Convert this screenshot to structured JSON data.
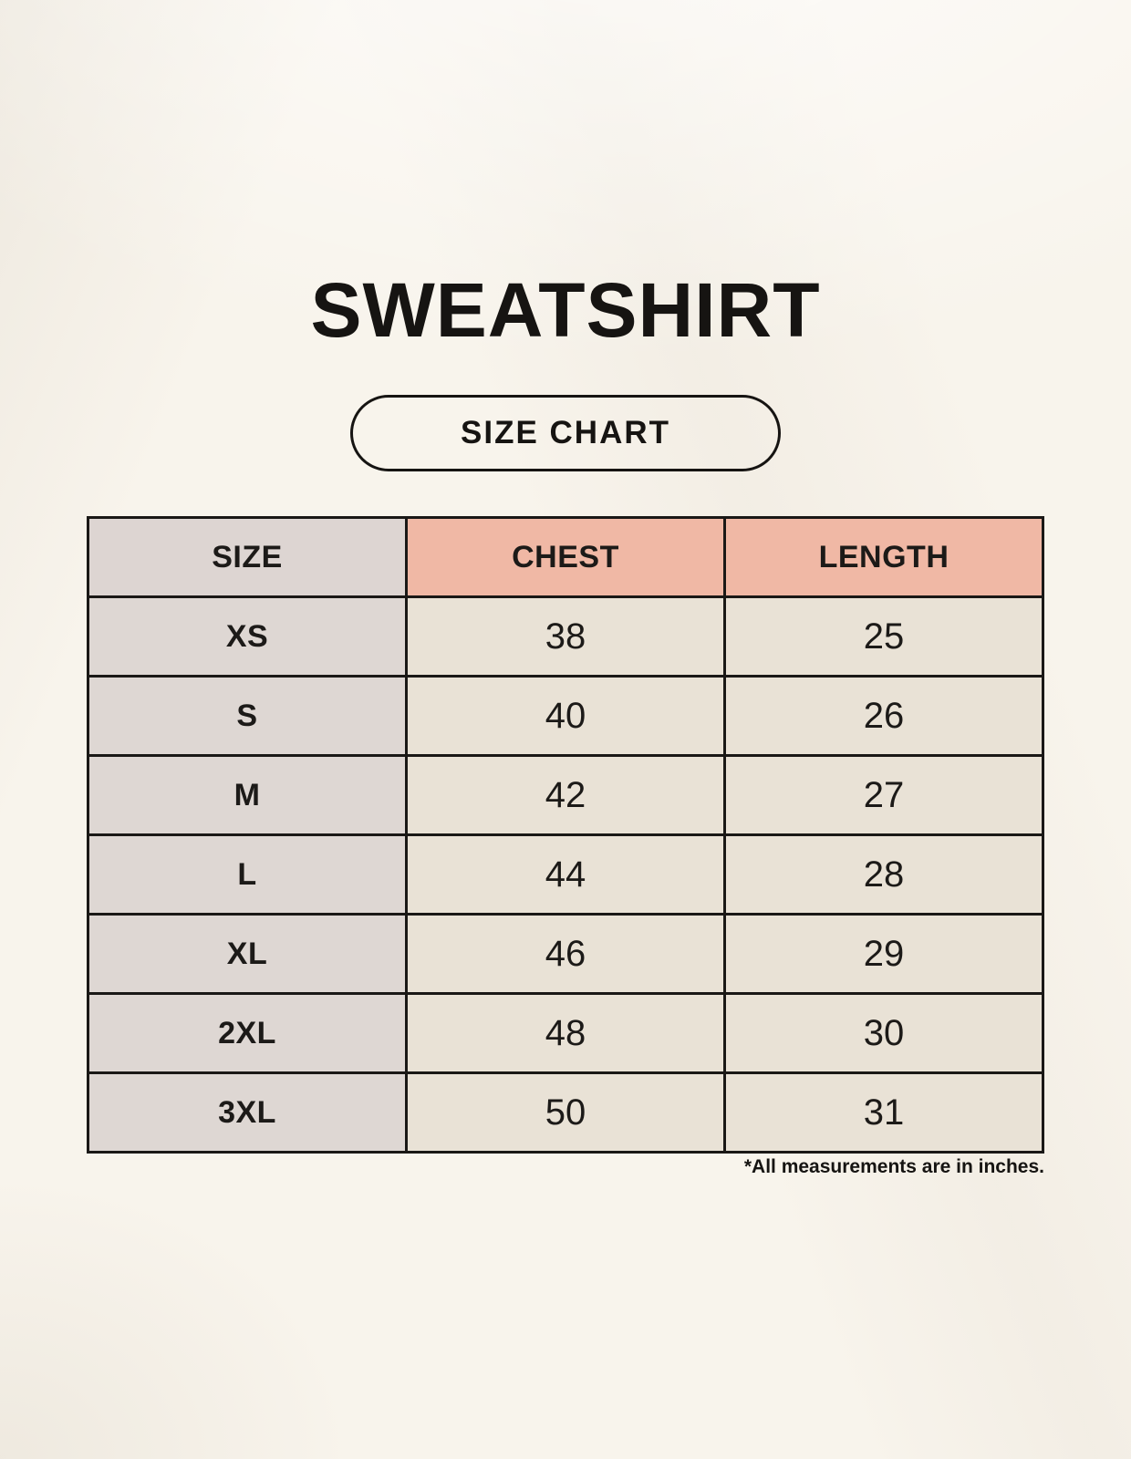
{
  "title": "SWEATSHIRT",
  "badge_label": "SIZE CHART",
  "footnote": "*All measurements are in inches.",
  "table": {
    "headers": [
      "SIZE",
      "CHEST",
      "LENGTH"
    ],
    "rows": [
      [
        "XS",
        "38",
        "25"
      ],
      [
        "S",
        "40",
        "26"
      ],
      [
        "M",
        "42",
        "27"
      ],
      [
        "L",
        "44",
        "28"
      ],
      [
        "XL",
        "46",
        "29"
      ],
      [
        "2XL",
        "48",
        "30"
      ],
      [
        "3XL",
        "50",
        "31"
      ]
    ]
  },
  "colors": {
    "page_background": "#f8f4ec",
    "header_label_bg": "#ddd5d2",
    "header_accent_bg": "#f0b8a5",
    "row_label_bg": "#ded7d3",
    "row_value_bg": "#e9e2d6",
    "table_border": "#1a1816",
    "text": "#1c1a18"
  },
  "chart_data": {
    "type": "table",
    "title": "SWEATSHIRT",
    "subtitle": "SIZE CHART",
    "columns": [
      "SIZE",
      "CHEST",
      "LENGTH"
    ],
    "rows": [
      {
        "SIZE": "XS",
        "CHEST": 38,
        "LENGTH": 25
      },
      {
        "SIZE": "S",
        "CHEST": 40,
        "LENGTH": 26
      },
      {
        "SIZE": "M",
        "CHEST": 42,
        "LENGTH": 27
      },
      {
        "SIZE": "L",
        "CHEST": 44,
        "LENGTH": 28
      },
      {
        "SIZE": "XL",
        "CHEST": 46,
        "LENGTH": 29
      },
      {
        "SIZE": "2XL",
        "CHEST": 48,
        "LENGTH": 30
      },
      {
        "SIZE": "3XL",
        "CHEST": 50,
        "LENGTH": 31
      }
    ],
    "units": "inches",
    "note": "*All measurements are in inches."
  }
}
